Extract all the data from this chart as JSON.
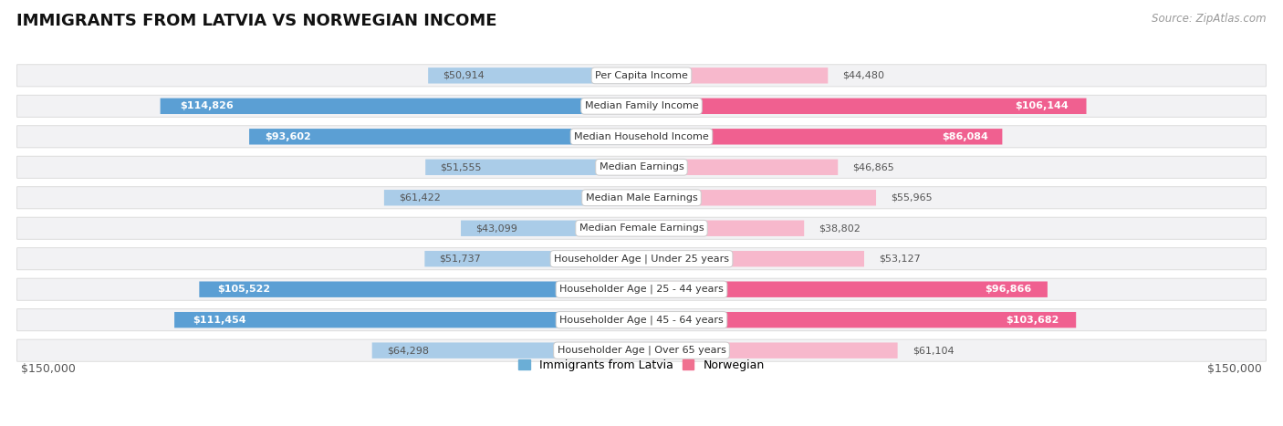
{
  "title": "IMMIGRANTS FROM LATVIA VS NORWEGIAN INCOME",
  "source": "Source: ZipAtlas.com",
  "categories": [
    "Per Capita Income",
    "Median Family Income",
    "Median Household Income",
    "Median Earnings",
    "Median Male Earnings",
    "Median Female Earnings",
    "Householder Age | Under 25 years",
    "Householder Age | 25 - 44 years",
    "Householder Age | 45 - 64 years",
    "Householder Age | Over 65 years"
  ],
  "latvia_values": [
    50914,
    114826,
    93602,
    51555,
    61422,
    43099,
    51737,
    105522,
    111454,
    64298
  ],
  "norwegian_values": [
    44480,
    106144,
    86084,
    46865,
    55965,
    38802,
    53127,
    96866,
    103682,
    61104
  ],
  "max_value": 150000,
  "latvia_color_light": "#aacce8",
  "latvia_color_dark": "#5b9fd4",
  "norwegian_color_light": "#f7b8cc",
  "norwegian_color_dark": "#f06090",
  "latvia_label": "Immigrants from Latvia",
  "norwegian_label": "Norwegian",
  "legend_color_latvia": "#6baed6",
  "legend_color_norwegian": "#f07090",
  "row_bg": "#f0f0f0",
  "row_border": "#dddddd",
  "axis_label_left": "$150,000",
  "axis_label_right": "$150,000",
  "title_fontsize": 13,
  "source_fontsize": 8.5,
  "bar_label_fontsize": 8,
  "category_fontsize": 8,
  "legend_fontsize": 9,
  "inside_threshold": 80000
}
